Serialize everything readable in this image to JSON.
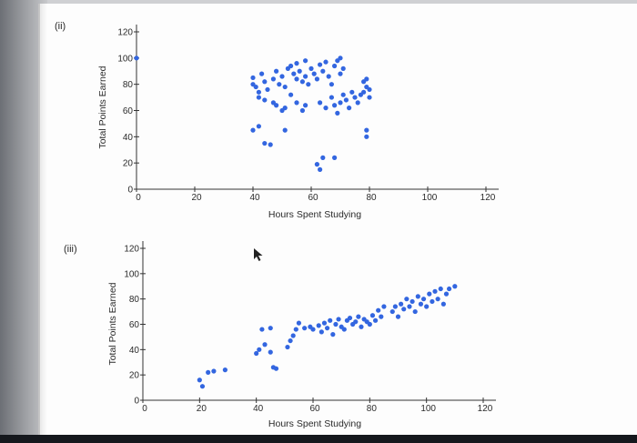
{
  "colors": {
    "marker": "#3366e0",
    "axis": "#333333",
    "paper": "#fdfdfd"
  },
  "cursor": {
    "icon": "mouse-pointer-icon"
  },
  "chart_data": [
    {
      "type": "scatter",
      "part_label": "(ii)",
      "xlabel": "Hours Spent Studying",
      "ylabel": "Total Points Earned",
      "xlim": [
        0,
        120
      ],
      "ylim": [
        0,
        120
      ],
      "xticks": [
        "0",
        "20",
        "40",
        "60",
        "80",
        "100",
        "120"
      ],
      "yticks": [
        "0",
        "20",
        "40",
        "60",
        "80",
        "100",
        "120"
      ],
      "grid": false,
      "points": [
        [
          0,
          100
        ],
        [
          40,
          85
        ],
        [
          40,
          80
        ],
        [
          41,
          78
        ],
        [
          42,
          74
        ],
        [
          42,
          70
        ],
        [
          43,
          88
        ],
        [
          44,
          82
        ],
        [
          45,
          76
        ],
        [
          44,
          68
        ],
        [
          47,
          84
        ],
        [
          48,
          90
        ],
        [
          49,
          80
        ],
        [
          50,
          86
        ],
        [
          51,
          78
        ],
        [
          52,
          92
        ],
        [
          53,
          94
        ],
        [
          54,
          88
        ],
        [
          55,
          84
        ],
        [
          55,
          96
        ],
        [
          56,
          90
        ],
        [
          57,
          82
        ],
        [
          58,
          98
        ],
        [
          58,
          86
        ],
        [
          59,
          80
        ],
        [
          60,
          92
        ],
        [
          61,
          88
        ],
        [
          62,
          84
        ],
        [
          63,
          95
        ],
        [
          64,
          90
        ],
        [
          65,
          97
        ],
        [
          66,
          86
        ],
        [
          67,
          80
        ],
        [
          68,
          94
        ],
        [
          69,
          98
        ],
        [
          70,
          88
        ],
        [
          70,
          100
        ],
        [
          71,
          92
        ],
        [
          47,
          66
        ],
        [
          48,
          64
        ],
        [
          50,
          60
        ],
        [
          51,
          62
        ],
        [
          53,
          72
        ],
        [
          55,
          66
        ],
        [
          57,
          60
        ],
        [
          58,
          64
        ],
        [
          63,
          66
        ],
        [
          65,
          62
        ],
        [
          67,
          70
        ],
        [
          68,
          64
        ],
        [
          69,
          58
        ],
        [
          70,
          66
        ],
        [
          71,
          72
        ],
        [
          72,
          68
        ],
        [
          73,
          62
        ],
        [
          74,
          74
        ],
        [
          75,
          70
        ],
        [
          76,
          66
        ],
        [
          77,
          72
        ],
        [
          78,
          74
        ],
        [
          79,
          78
        ],
        [
          80,
          76
        ],
        [
          80,
          70
        ],
        [
          78,
          82
        ],
        [
          79,
          84
        ],
        [
          40,
          45
        ],
        [
          42,
          48
        ],
        [
          44,
          35
        ],
        [
          46,
          34
        ],
        [
          51,
          45
        ],
        [
          79,
          45
        ],
        [
          79,
          40
        ],
        [
          62,
          19
        ],
        [
          63,
          15
        ],
        [
          64,
          24
        ],
        [
          68,
          24
        ]
      ]
    },
    {
      "type": "scatter",
      "part_label": "(iii)",
      "xlabel": "Hours Spent Studying",
      "ylabel": "Total Points Earned",
      "xlim": [
        0,
        120
      ],
      "ylim": [
        0,
        120
      ],
      "xticks": [
        "0",
        "20",
        "40",
        "60",
        "80",
        "100",
        "120"
      ],
      "yticks": [
        "0",
        "20",
        "40",
        "60",
        "80",
        "100",
        "120"
      ],
      "grid": false,
      "points": [
        [
          20,
          16
        ],
        [
          21,
          11
        ],
        [
          23,
          22
        ],
        [
          25,
          23
        ],
        [
          29,
          24
        ],
        [
          40,
          37
        ],
        [
          41,
          40
        ],
        [
          43,
          44
        ],
        [
          45,
          38
        ],
        [
          46,
          26
        ],
        [
          47,
          25
        ],
        [
          42,
          56
        ],
        [
          45,
          57
        ],
        [
          51,
          42
        ],
        [
          52,
          47
        ],
        [
          53,
          51
        ],
        [
          54,
          56
        ],
        [
          55,
          61
        ],
        [
          57,
          57
        ],
        [
          59,
          58
        ],
        [
          60,
          56
        ],
        [
          62,
          59
        ],
        [
          63,
          54
        ],
        [
          64,
          61
        ],
        [
          65,
          57
        ],
        [
          66,
          63
        ],
        [
          67,
          52
        ],
        [
          68,
          60
        ],
        [
          69,
          64
        ],
        [
          70,
          58
        ],
        [
          71,
          56
        ],
        [
          72,
          63
        ],
        [
          73,
          65
        ],
        [
          74,
          60
        ],
        [
          75,
          62
        ],
        [
          76,
          66
        ],
        [
          77,
          58
        ],
        [
          78,
          64
        ],
        [
          79,
          62
        ],
        [
          80,
          60
        ],
        [
          81,
          67
        ],
        [
          82,
          63
        ],
        [
          83,
          71
        ],
        [
          84,
          66
        ],
        [
          85,
          74
        ],
        [
          88,
          70
        ],
        [
          89,
          74
        ],
        [
          90,
          66
        ],
        [
          91,
          76
        ],
        [
          92,
          72
        ],
        [
          93,
          80
        ],
        [
          94,
          74
        ],
        [
          95,
          78
        ],
        [
          96,
          70
        ],
        [
          97,
          82
        ],
        [
          98,
          76
        ],
        [
          99,
          80
        ],
        [
          100,
          74
        ],
        [
          101,
          84
        ],
        [
          102,
          78
        ],
        [
          103,
          86
        ],
        [
          104,
          80
        ],
        [
          105,
          88
        ],
        [
          106,
          76
        ],
        [
          107,
          84
        ],
        [
          108,
          88
        ],
        [
          110,
          90
        ]
      ]
    }
  ]
}
